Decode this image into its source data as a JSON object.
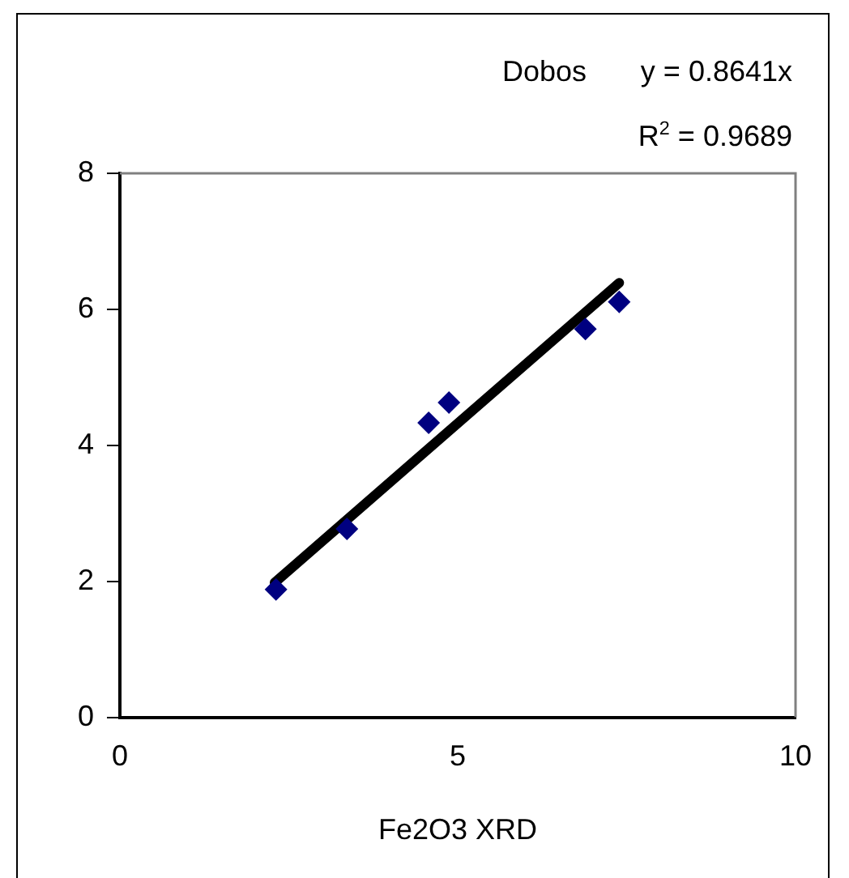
{
  "chart_data": {
    "type": "scatter",
    "title": "Dobos",
    "xlabel": "Fe2O3 XRD",
    "annotations": [
      "y = 0.8641x",
      "R$^{2}$ = 0.9689"
    ],
    "xlim": [
      0,
      10
    ],
    "xticks": [
      0,
      5,
      10
    ],
    "ylim": [
      0,
      8
    ],
    "yticks": [
      0,
      2,
      4,
      6,
      8
    ],
    "grid": false,
    "legend": false,
    "series": [
      {
        "marker": "diamond",
        "color": "#000080",
        "x": [
          2.31,
          3.36,
          4.57,
          4.87,
          6.89,
          7.39
        ],
        "values": [
          1.88,
          2.77,
          4.33,
          4.63,
          5.71,
          6.11
        ]
      },
      {
        "type": "line",
        "marker": "none",
        "color": "#000000",
        "x": [
          2.29,
          7.39
        ],
        "values": [
          1.98,
          6.39
        ]
      }
    ]
  }
}
